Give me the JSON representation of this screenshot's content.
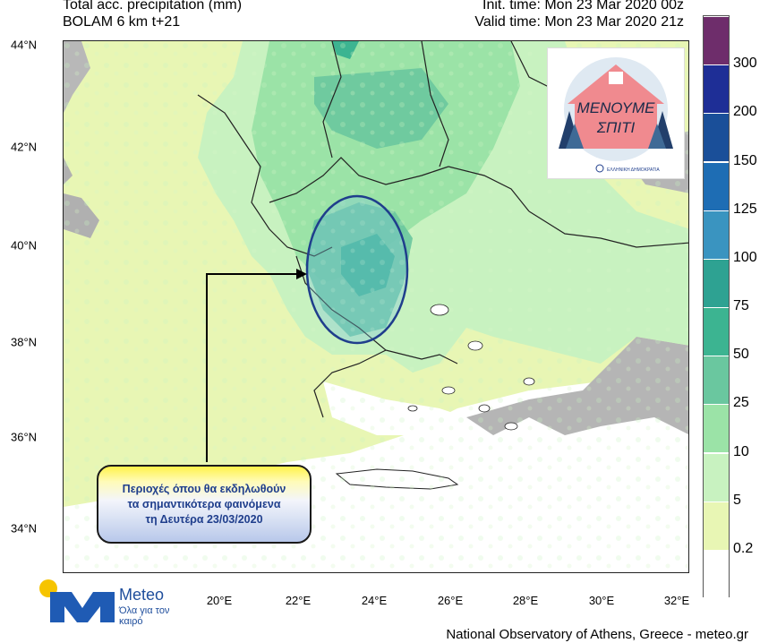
{
  "header": {
    "title_line1": "Total acc. precipitation (mm)",
    "title_line2": "BOLAM 6 km t+21",
    "init_time": "Init. time: Mon 23 Mar 2020 00z",
    "valid_time": "Valid time: Mon 23 Mar 2020 21z"
  },
  "map": {
    "lat_labels": [
      "44°N",
      "42°N",
      "40°N",
      "38°N",
      "36°N",
      "34°N"
    ],
    "lon_labels": [
      "20°E",
      "22°E",
      "24°E",
      "26°E",
      "28°E",
      "30°E",
      "32°E"
    ],
    "lat_range": [
      32.9,
      43.9
    ],
    "lon_range": [
      17.0,
      32.5
    ],
    "highlight_region": "Northern Aegean / Thessaly / Chalkidiki"
  },
  "colorbar": {
    "labels": [
      "300",
      "200",
      "150",
      "125",
      "100",
      "75",
      "50",
      "25",
      "10",
      "5",
      "0.2"
    ],
    "colors": [
      "#6e2d6b",
      "#1e2e96",
      "#1a4f99",
      "#1e6db4",
      "#3a94c0",
      "#2ea292",
      "#3cb491",
      "#6ac79f",
      "#9be3a7",
      "#c8f2c0",
      "#e8f6b4",
      "#ffffff"
    ]
  },
  "logo": {
    "text_line1": "ΜΕΝΟΥΜΕ",
    "text_line2": "ΣΠΙΤΙ",
    "caption": "ΕΛΛΗΝΙΚΗ ΔΗΜΟΚΡΑΤΙΑ"
  },
  "callout": {
    "line1": "Περιοχές όπου θα εκδηλωθούν",
    "line2": "τα σημαντικότερα φαινόμενα",
    "line3": "τη Δευτέρα 23/03/2020"
  },
  "branding": {
    "name": "Meteo",
    "tagline": "Όλα για τον καιρό",
    "footer": "National Observatory of Athens, Greece - meteo.gr"
  }
}
